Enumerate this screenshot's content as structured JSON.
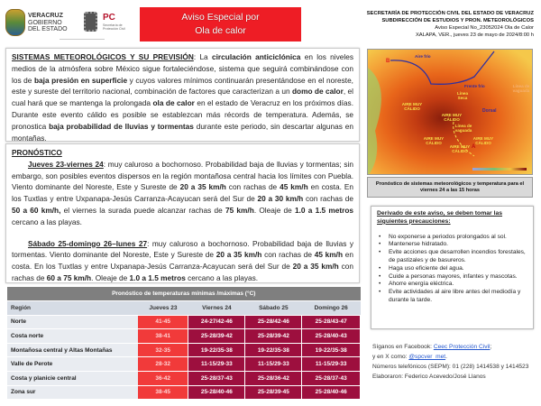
{
  "header": {
    "logo1_lines": [
      "VERACRUZ",
      "GOBIERNO",
      "DEL ESTADO"
    ],
    "logo2_title": "PC",
    "logo2_lines": [
      "Secretaría de",
      "Protección Civil"
    ],
    "banner_lines": [
      "Aviso Especial por",
      "Ola de calor"
    ],
    "org_lines": [
      "SECRETARÍA DE PROTECCIÓN CIVIL DEL ESTADO DE VERACRUZ",
      "SUBDIRECCIÓN DE ESTUDIOS Y PRON. METEOROLÓGICOS"
    ],
    "aviso": "Aviso Especial No_23052024 Ola de Calor",
    "place_date": "XALAPA, VER., jueves 23 de mayo de 2024/8:00 h"
  },
  "sistemas": [
    {
      "t": "SISTEMAS METEOROLÓGICOS Y SU PREVISIÓN",
      "s": "u"
    },
    {
      "t": ": La "
    },
    {
      "t": "circulación anticiclónica",
      "s": "b"
    },
    {
      "t": " en los niveles medios de la atmósfera sobre México sigue fortaleciéndose, sistema que seguirá combinándose con los de "
    },
    {
      "t": "baja presión en superficie",
      "s": "b"
    },
    {
      "t": " y cuyos valores mínimos continuarán presentándose en el noreste, este y sureste del territorio nacional, combinación de factores que caracterizan a un "
    },
    {
      "t": "domo de calor",
      "s": "b"
    },
    {
      "t": ", el cual hará que se mantenga la prolongada "
    },
    {
      "t": "ola de calor",
      "s": "b"
    },
    {
      "t": " en el estado de Veracruz en los próximos días. Durante este evento cálido es posible se establezcan más récords de temperatura. Además, se pronostica "
    },
    {
      "t": "baja probabilidad de lluvias y tormentas",
      "s": "b"
    },
    {
      "t": " durante este periodo,  sin descartar algunas en montañas."
    }
  ],
  "pronostico": {
    "title": "PRONÓSTICO",
    "p1": [
      {
        "t": "Jueves 23-viernes 24",
        "s": "u"
      },
      {
        "t": ": muy caluroso a bochornoso. Probabilidad baja de lluvias y tormentas; sin embargo, son posibles eventos dispersos en la región montañosa central hacia los límites con Puebla. Viento dominante del Noreste, Este y Sureste de "
      },
      {
        "t": "20 a 35 km/h",
        "s": "b"
      },
      {
        "t": " con rachas de "
      },
      {
        "t": "45 km/h",
        "s": "b"
      },
      {
        "t": " en costa. En los Tuxtlas y entre Uxpanapa-Jesús Carranza-Acayucan será del Sur de "
      },
      {
        "t": "20 a 30 km/h",
        "s": "b"
      },
      {
        "t": " con rachas de "
      },
      {
        "t": "50 a 60 km/h,",
        "s": "b"
      },
      {
        "t": " el viernes la surada puede alcanzar rachas de "
      },
      {
        "t": "75 km/h",
        "s": "b"
      },
      {
        "t": ". Oleaje de "
      },
      {
        "t": "1.0 a 1.5 metros",
        "s": "b"
      },
      {
        "t": " cercano a las playas."
      }
    ],
    "p2": [
      {
        "t": "Sábado 25-domingo 26–lunes 27",
        "s": "u"
      },
      {
        "t": ": muy caluroso a bochornoso. Probabilidad baja de lluvias y tormentas. Viento dominante del Noreste, Este y Sureste de "
      },
      {
        "t": "20 a 35 km/h",
        "s": "b"
      },
      {
        "t": " con rachas de "
      },
      {
        "t": "45 km/h",
        "s": "b"
      },
      {
        "t": " en costa. En los Tuxtlas y entre Uxpanapa-Jesús Carranza-Acayucan será del Sur de "
      },
      {
        "t": "20 a 35 km/h",
        "s": "b"
      },
      {
        "t": " con rachas de "
      },
      {
        "t": "60 a 75 km/h",
        "s": "b"
      },
      {
        "t": ". Oleaje de "
      },
      {
        "t": "1.0 a 1.5 metros",
        "s": "b"
      },
      {
        "t": " cercano a las playas."
      }
    ]
  },
  "table": {
    "caption": "Pronóstico de temperaturas  mínimas /máximas  (°C)",
    "headers": [
      "Región",
      "Jueves 23",
      "Viernes 24",
      "Sábado 25",
      "Domingo 26"
    ],
    "rows": [
      [
        "Norte",
        "41-45",
        "24-27/42-46",
        "25-28/42-46",
        "25-28/43-47"
      ],
      [
        "Costa norte",
        "38-41",
        "25-28/39-42",
        "25-28/39-42",
        "25-28/40-43"
      ],
      [
        "Montañosa central y Altas Montañas",
        "32-35",
        "19-22/35-38",
        "19-22/35-38",
        "19-22/35-38"
      ],
      [
        "Valle de Perote",
        "28-32",
        "11-15/29-33",
        "11-15/29-33",
        "11-15/29-33"
      ],
      [
        "Costa y planicie central",
        "36-42",
        "25-28/37-43",
        "25-28/36-42",
        "25-28/37-43"
      ],
      [
        "Zona sur",
        "38-45",
        "25-28/40-46",
        "25-28/39-45",
        "25-28/40-46"
      ]
    ],
    "colors": {
      "jueves": "#f13a3a",
      "others": "#9d0f3e",
      "caption_bg": "#7f7f7f"
    }
  },
  "map": {
    "labels": {
      "aire_frio": "Aire frío",
      "b1": "B",
      "frente": "Frente frío",
      "linea_seca": "Línea Seca",
      "dorsal": "Dorsal",
      "vaguada1": "Línea de vaguada",
      "vaguada2": "Línea de vaguada",
      "amc": "AIRE MUY CÁLIDO",
      "a": "A"
    },
    "caption": "Pronóstico de sistemas meteorológicos y temperatura para el viernes 24 a las 15 horas"
  },
  "precauciones": {
    "title": "Derivado de este aviso, se deben tomar las siguientes precauciones:",
    "items": [
      "No exponerse a periodos prolongados al sol.",
      "Mantenerse hidratado.",
      "Evite acciones que desarrollen incendios forestales, de pastizales y de basureros.",
      "Haga uso eficiente del agua.",
      "Cuide a personas mayores, infantes y mascotas.",
      "Ahorre energía eléctrica.",
      "Evite actividades al aire libre antes del mediodía y durante la tarde."
    ]
  },
  "footer": {
    "fb_prefix": "Síganos en Facebook: ",
    "fb_link": "Ceec Protección Civil",
    "fb_suffix": ";",
    "x_prefix": "y en X como: ",
    "x_link": "@spcver_met",
    "x_suffix": ".",
    "phones": "Números telefónicos (SEPM):  01 (228) 1414538  y 1414523",
    "authors": "Elaboraron: Federico Acevedo/José Llanos"
  }
}
